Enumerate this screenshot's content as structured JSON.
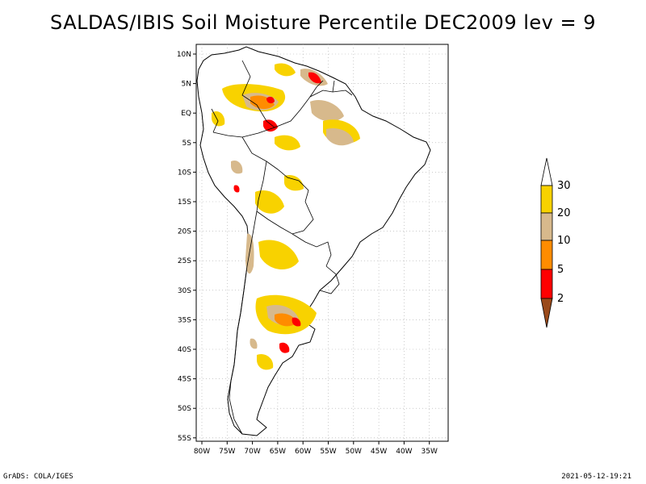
{
  "title": "SALDAS/IBIS Soil Moisture Percentile DEC2009 lev = 9",
  "footer": {
    "left": "GrADS: COLA/IGES",
    "right": "2021-05-12-19:21"
  },
  "axes": {
    "lon_ticks": [
      "80W",
      "75W",
      "70W",
      "65W",
      "60W",
      "55W",
      "50W",
      "45W",
      "40W",
      "35W"
    ],
    "lat_ticks": [
      "10N",
      "5N",
      "EQ",
      "5S",
      "10S",
      "15S",
      "20S",
      "25S",
      "30S",
      "35S",
      "40S",
      "45S",
      "50S",
      "55S"
    ],
    "lon_range": [
      -81,
      -34
    ],
    "lat_range": [
      12,
      -56
    ],
    "grid": true
  },
  "colorbar": {
    "labels": [
      "30",
      "20",
      "10",
      "5",
      "2"
    ],
    "colors": {
      "above_30": "#ffffff",
      "20_30": "#f8d200",
      "10_20": "#d7b98c",
      "5_10": "#ff8c00",
      "2_5": "#ff0000",
      "below_2": "#9a4a1a"
    }
  },
  "colors": {
    "coastline": "#000000",
    "grid": "#aaaaaa"
  }
}
